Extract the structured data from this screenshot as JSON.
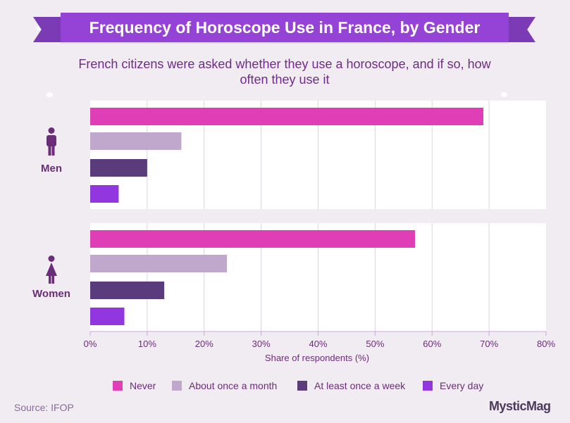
{
  "header": {
    "title": "Frequency of Horoscope Use in France, by Gender",
    "subtitle": "French citizens were asked whether they use a horoscope, and if so, how often they use it"
  },
  "chart_data": {
    "type": "bar",
    "orientation": "horizontal",
    "title": "Frequency of Horoscope Use in France, by Gender",
    "xlabel": "Share of respondents (%)",
    "xlim": [
      0,
      80
    ],
    "x_ticks": [
      "0%",
      "10%",
      "20%",
      "30%",
      "40%",
      "50%",
      "60%",
      "70%",
      "80%"
    ],
    "grid": true,
    "legend_position": "bottom",
    "categories": [
      "Men",
      "Women"
    ],
    "series": [
      {
        "name": "Never",
        "color": "#e03eb6",
        "values": [
          69,
          57
        ]
      },
      {
        "name": "About once a month",
        "color": "#bfa8cb",
        "values": [
          16,
          24
        ]
      },
      {
        "name": "At least once a week",
        "color": "#5a3c7c",
        "values": [
          10,
          13
        ]
      },
      {
        "name": "Every day",
        "color": "#9236e0",
        "values": [
          5,
          6
        ]
      }
    ]
  },
  "icons": {
    "men": "male-person-icon",
    "women": "female-person-icon"
  },
  "footer": {
    "source": "Source: IFOP",
    "brand": "MysticMag"
  }
}
